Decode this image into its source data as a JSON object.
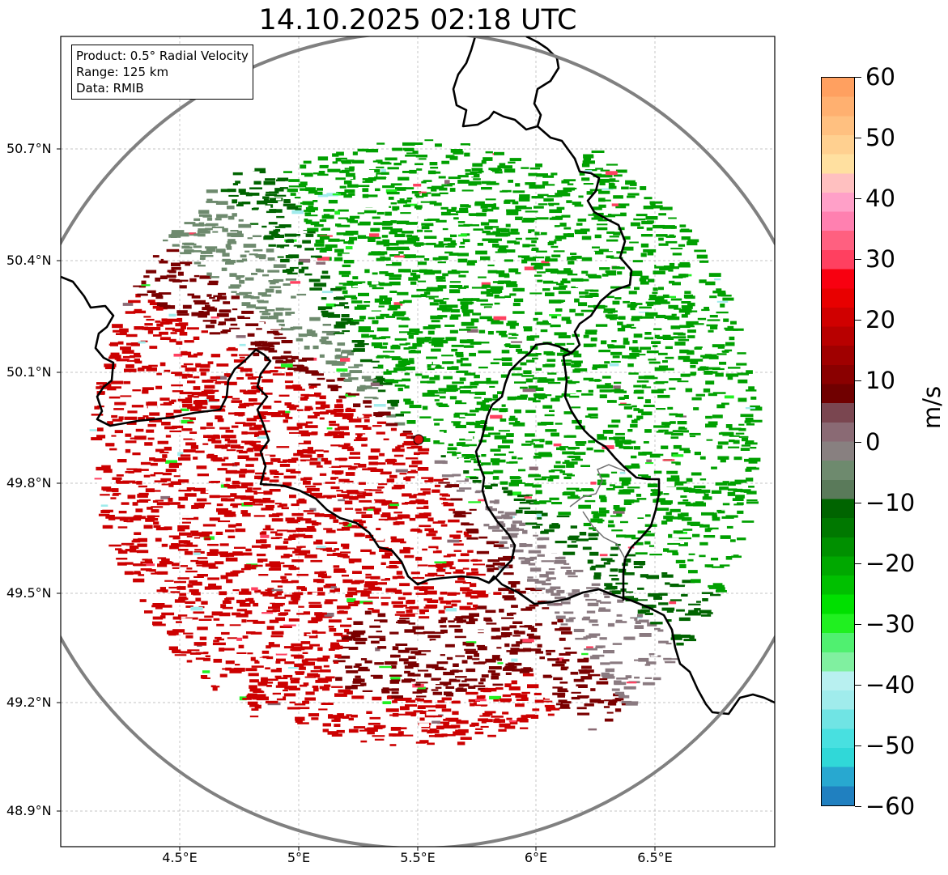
{
  "title": "14.10.2025 02:18 UTC",
  "info": {
    "product": "Product: 0.5° Radial Velocity",
    "range": "Range: 125 km",
    "data": "Data: RMIB"
  },
  "lat_ticks": [
    "50.7°N",
    "50.4°N",
    "50.1°N",
    "49.8°N",
    "49.5°N",
    "49.2°N",
    "48.9°N"
  ],
  "lon_ticks": [
    "4.5°E",
    "5°E",
    "5.5°E",
    "6°E",
    "6.5°E"
  ],
  "colorbar": {
    "unit": "m/s",
    "min": -60,
    "max": 60,
    "labels": [
      "60",
      "50",
      "40",
      "30",
      "20",
      "10",
      "0",
      "−10",
      "−20",
      "−30",
      "−40",
      "−50",
      "−60"
    ],
    "stops": [
      "#2080c0",
      "#28a8d0",
      "#30d8d8",
      "#48e0e0",
      "#70e4e4",
      "#a0ecec",
      "#b8f0f0",
      "#80f0a0",
      "#50f070",
      "#20f020",
      "#00e000",
      "#00c000",
      "#00a800",
      "#009000",
      "#007800",
      "#006400",
      "#5a7a5a",
      "#6e8a6e",
      "#888080",
      "#8a6a74",
      "#7a4650",
      "#700000",
      "#8a0000",
      "#a00000",
      "#b80000",
      "#d00000",
      "#e80000",
      "#f80010",
      "#ff4060",
      "#ff6080",
      "#ff80b0",
      "#ffa0c8",
      "#ffc0c0",
      "#ffe0a0",
      "#ffd090",
      "#ffc080",
      "#ffb070",
      "#ffa060"
    ]
  },
  "radar": {
    "site_lon": 5.5,
    "site_lat": 49.91,
    "range_km": 125,
    "site_color": "#e01010",
    "range_ring_color": "#808080"
  },
  "map_extent": {
    "lon_min": 4.0,
    "lon_max": 7.0,
    "lat_min": 48.8,
    "lat_max": 50.98
  },
  "echo_colors": {
    "inbound": "#00a000",
    "inbound_dark": "#006400",
    "near_zero": "#6e8a6e",
    "near_zero_pink": "#8a7a80",
    "outbound": "#cc0000",
    "outbound_dark": "#7a0000"
  }
}
